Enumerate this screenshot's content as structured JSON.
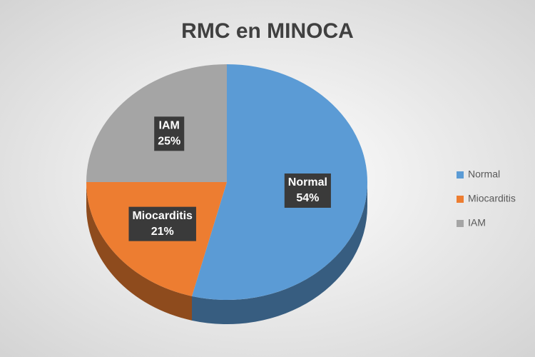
{
  "chart_data": {
    "type": "pie",
    "title": "RMC en MINOCA",
    "categories": [
      "Normal",
      "Miocarditis",
      "IAM"
    ],
    "values": [
      54,
      21,
      25
    ],
    "value_labels": [
      "54%",
      "21%",
      "25%"
    ],
    "colors": [
      "#5b9bd5",
      "#ed7d31",
      "#a5a5a5"
    ],
    "legend": "right"
  }
}
